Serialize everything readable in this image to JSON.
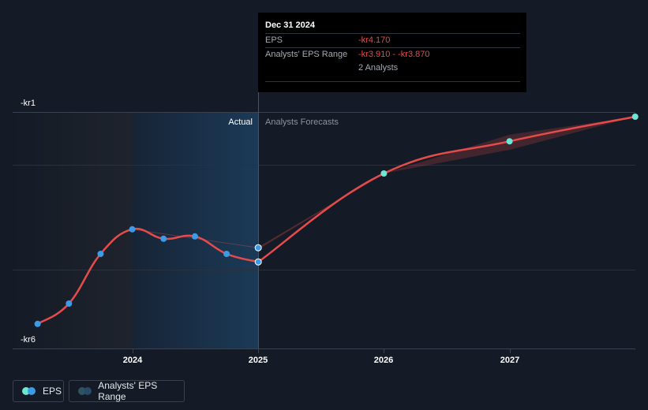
{
  "chart_data": {
    "type": "line",
    "y_tick_labels": [
      "-kr1",
      "-kr6"
    ],
    "ylim": [
      -6,
      -1
    ],
    "x_tick_labels": [
      "2024",
      "2025",
      "2026",
      "2027"
    ],
    "section_labels": {
      "actual": "Actual",
      "forecast": "Analysts Forecasts"
    },
    "series": [
      {
        "name": "EPS",
        "kind": "actual",
        "color": "#e64b4b",
        "marker_color": "#3d9be6",
        "points": [
          {
            "x": "2023-03-31",
            "y": -5.48
          },
          {
            "x": "2023-06-30",
            "y": -5.05
          },
          {
            "x": "2023-09-30",
            "y": -4.0
          },
          {
            "x": "2023-12-31",
            "y": -3.48
          },
          {
            "x": "2024-03-31",
            "y": -3.68
          },
          {
            "x": "2024-06-30",
            "y": -3.63
          },
          {
            "x": "2024-09-30",
            "y": -4.0
          },
          {
            "x": "2024-12-31",
            "y": -4.17
          }
        ]
      },
      {
        "name": "EPS",
        "kind": "forecast",
        "color": "#e64b4b",
        "marker_color": "#6ee6d6",
        "points": [
          {
            "x": "2024-12-31",
            "y": -4.17
          },
          {
            "x": "2025-12-31",
            "y": -2.3
          },
          {
            "x": "2026-12-31",
            "y": -1.62
          },
          {
            "x": "2027-12-31",
            "y": -1.1
          }
        ]
      }
    ],
    "range": {
      "name": "Analysts' EPS Range",
      "low": [
        {
          "x": "2024-12-31",
          "y": -3.91
        },
        {
          "x": "2025-12-31",
          "y": -2.3
        },
        {
          "x": "2026-12-31",
          "y": -1.8
        },
        {
          "x": "2027-12-31",
          "y": -1.1
        }
      ],
      "high": [
        {
          "x": "2024-12-31",
          "y": -3.87
        },
        {
          "x": "2025-12-31",
          "y": -2.3
        },
        {
          "x": "2026-12-31",
          "y": -1.48
        },
        {
          "x": "2027-12-31",
          "y": -1.1
        }
      ]
    },
    "past_estimate_line": [
      {
        "x": "2023-12-31",
        "y": -3.48
      },
      {
        "x": "2024-12-31",
        "y": -3.87
      }
    ],
    "grid": true
  },
  "tooltip": {
    "date": "Dec 31 2024",
    "eps_label": "EPS",
    "eps_value": "-kr4.170",
    "range_label": "Analysts' EPS Range",
    "range_value": "-kr3.910 - -kr3.870",
    "analysts": "2 Analysts"
  },
  "legend": {
    "eps_label": "EPS",
    "range_label": "Analysts' EPS Range"
  },
  "colors": {
    "background": "#151b26",
    "line": "#e64b4b",
    "actual_marker": "#3d9be6",
    "forecast_marker": "#6ee6d6",
    "highlight": "#1b3a57"
  }
}
